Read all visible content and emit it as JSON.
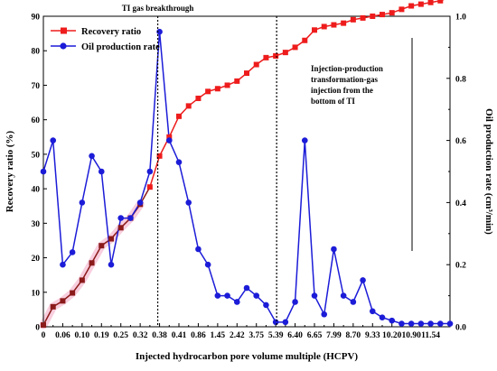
{
  "chart_data": {
    "type": "line",
    "title": "",
    "xlabel": "Injected hydrocarbon pore volume multiple (HCPV)",
    "ylabel_left": "Recovery ratio (%)",
    "ylabel_right": "Oil production rate (cm³/min)",
    "ylim_left": [
      0,
      90
    ],
    "ylim_right": [
      0.0,
      1.0
    ],
    "yticks_left": [
      "0",
      "10",
      "20",
      "30",
      "40",
      "50",
      "60",
      "70",
      "80",
      "90"
    ],
    "yticks_right": [
      "0.0",
      "0.2",
      "0.4",
      "0.6",
      "0.8",
      "1.0"
    ],
    "xtick_labels": [
      "0",
      "0.06",
      "0.10",
      "0.19",
      "0.25",
      "0.32",
      "0.38",
      "0.41",
      "0.86",
      "1.45",
      "2.42",
      "3.75",
      "5.39",
      "6.40",
      "6.65",
      "7.99",
      "8.70",
      "9.33",
      "10.20",
      "10.90",
      "11.54"
    ],
    "grid": false,
    "legend_position": "top-left",
    "series": [
      {
        "name": "Recovery ratio",
        "axis": "left",
        "color": "#ee1c1c",
        "marker": "square",
        "index": [
          0,
          1,
          2,
          3,
          4,
          5,
          6,
          7,
          8,
          9,
          10,
          11,
          12,
          13,
          14,
          15,
          16,
          17,
          18,
          19,
          20,
          21,
          22,
          23,
          24,
          25,
          26,
          27,
          28,
          29,
          30,
          31,
          32,
          33,
          34,
          35,
          36,
          37,
          38,
          39,
          40,
          41,
          42
        ],
        "values": [
          0.5,
          5.8,
          7.5,
          9.8,
          13.5,
          18.5,
          23.5,
          25.5,
          28.7,
          31.5,
          35.5,
          40.5,
          49.5,
          55,
          61,
          64,
          66.2,
          68.2,
          69,
          70,
          71.2,
          73.5,
          76,
          78,
          78.5,
          79.5,
          81,
          83,
          86,
          87,
          87.5,
          88,
          89,
          89.5,
          90,
          90.5,
          91,
          92,
          93,
          93.5,
          94,
          94.5,
          95.5
        ]
      },
      {
        "name": "Oil production rate",
        "axis": "right",
        "color": "#1c1cd8",
        "marker": "circle",
        "index": [
          0,
          1,
          2,
          3,
          4,
          5,
          6,
          7,
          8,
          9,
          10,
          11,
          12,
          13,
          14,
          15,
          16,
          17,
          18,
          19,
          20,
          21,
          22,
          23,
          24,
          25,
          26,
          27,
          28,
          29,
          30,
          31,
          32,
          33,
          34,
          35,
          36,
          37,
          38,
          39,
          40,
          41,
          42
        ],
        "values": [
          0.5,
          0.6,
          0.2,
          0.24,
          0.4,
          0.55,
          0.5,
          0.2,
          0.35,
          0.35,
          0.4,
          0.5,
          0.95,
          0.6,
          0.53,
          0.4,
          0.25,
          0.2,
          0.1,
          0.1,
          0.08,
          0.125,
          0.1,
          0.07,
          0.015,
          0.015,
          0.08,
          0.6,
          0.1,
          0.04,
          0.25,
          0.1,
          0.08,
          0.15,
          0.05,
          0.03,
          0.02,
          0.01,
          0.01,
          0.01,
          0.01,
          0.01,
          0.01
        ]
      }
    ],
    "annotations": {
      "breakthrough": "TI gas breakthrough",
      "injection": [
        "Injection-production",
        "transformation-gas",
        "injection from the",
        "bottom of TI"
      ]
    }
  }
}
